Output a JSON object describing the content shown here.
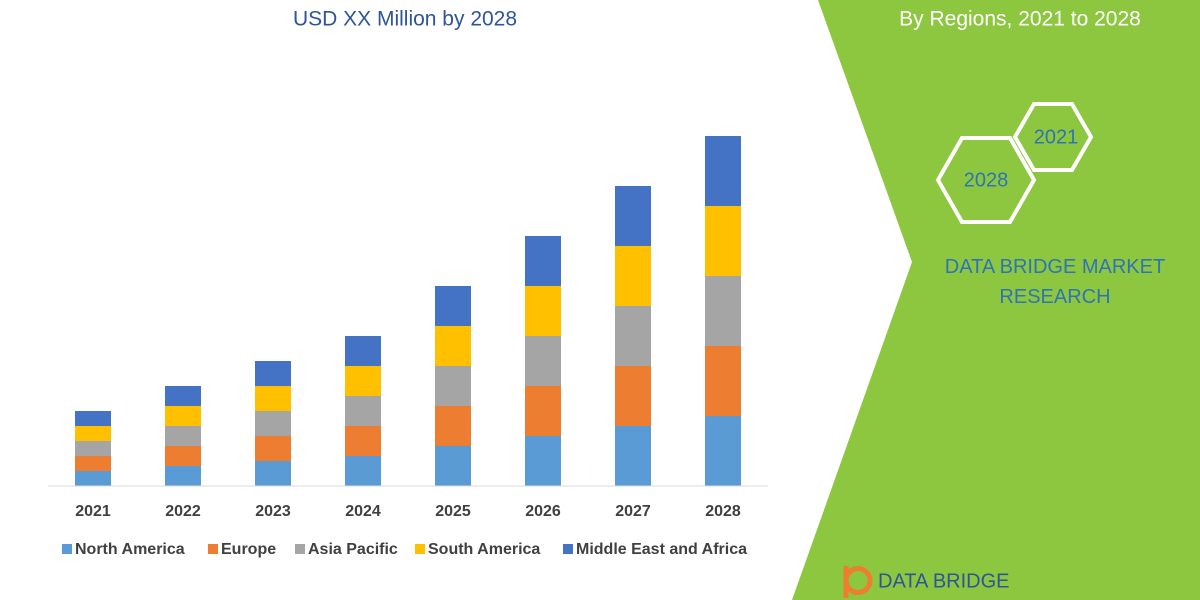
{
  "header": {
    "title": "USD XX Million by 2028"
  },
  "chart_data": {
    "type": "bar",
    "stacked": true,
    "categories": [
      "2021",
      "2022",
      "2023",
      "2024",
      "2025",
      "2026",
      "2027",
      "2028"
    ],
    "series": [
      {
        "name": "North America",
        "color": "#5b9bd5",
        "values": [
          15,
          20,
          25,
          30,
          40,
          50,
          60,
          70
        ]
      },
      {
        "name": "Europe",
        "color": "#ed7d31",
        "values": [
          15,
          20,
          25,
          30,
          40,
          50,
          60,
          70
        ]
      },
      {
        "name": "Asia Pacific",
        "color": "#a5a5a5",
        "values": [
          15,
          20,
          25,
          30,
          40,
          50,
          60,
          70
        ]
      },
      {
        "name": "South America",
        "color": "#ffc000",
        "values": [
          15,
          20,
          25,
          30,
          40,
          50,
          60,
          70
        ]
      },
      {
        "name": "Middle East and Africa",
        "color": "#4472c4",
        "values": [
          15,
          20,
          25,
          30,
          40,
          50,
          60,
          70
        ]
      }
    ],
    "legend": "bottom"
  },
  "side_panel": {
    "subtitle": "By Regions, 2021 to 2028",
    "hex_years": [
      "2021",
      "2028"
    ],
    "company": "DATA BRIDGE MARKET RESEARCH",
    "logo_text": "DATA BRIDGE"
  }
}
